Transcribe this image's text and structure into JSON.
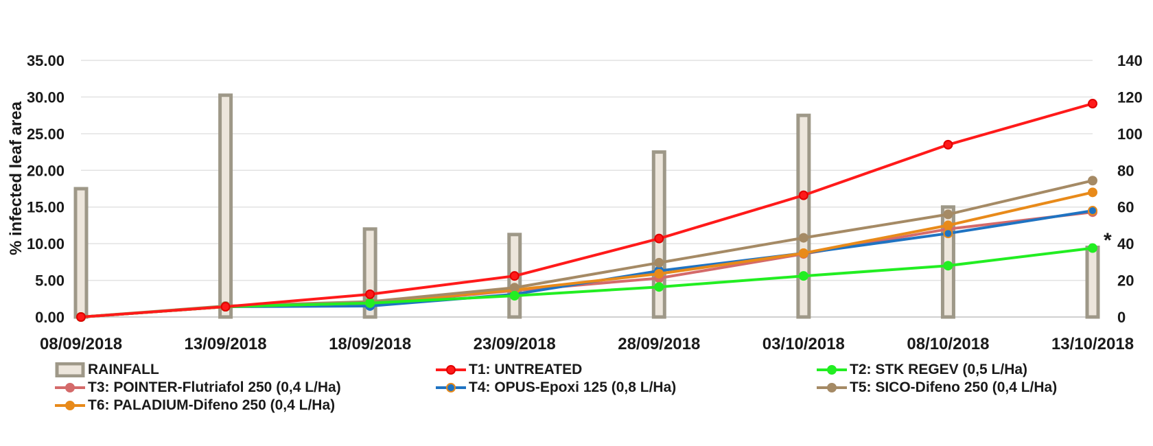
{
  "chart_data": {
    "type": "bar+line",
    "title": "",
    "ylabel": "% infected leaf area",
    "y2label": "",
    "ylim": [
      0,
      35
    ],
    "y2lim": [
      0,
      140
    ],
    "yticks": [
      "0.00",
      "5.00",
      "10.00",
      "15.00",
      "20.00",
      "25.00",
      "30.00",
      "35.00"
    ],
    "y2ticks": [
      "0",
      "20",
      "40",
      "60",
      "80",
      "100",
      "120",
      "140"
    ],
    "xrange": [
      "2018-09-08",
      "2018-10-13"
    ],
    "xticks": [
      "08/09/2018",
      "13/09/2018",
      "18/09/2018",
      "23/09/2018",
      "28/09/2018",
      "03/10/2018",
      "08/10/2018",
      "13/10/2018"
    ],
    "xtick_dates": [
      "2018-09-08",
      "2018-09-13",
      "2018-09-18",
      "2018-09-23",
      "2018-09-28",
      "2018-10-03",
      "2018-10-08",
      "2018-10-13"
    ],
    "grid": true,
    "legend_position": "bottom",
    "annotation": "*",
    "bars": {
      "name": "RAINFALL",
      "axis": "secondary",
      "color": "#ede6dc",
      "edge_color": "#9e9888",
      "x": [
        "2018-09-08",
        "2018-09-13",
        "2018-09-18",
        "2018-09-23",
        "2018-09-28",
        "2018-10-03",
        "2018-10-08",
        "2018-10-13"
      ],
      "values": [
        70,
        121,
        48,
        45,
        90,
        110,
        60,
        38
      ]
    },
    "x": [
      "2018-09-08",
      "2018-09-13",
      "2018-09-18",
      "2018-09-23",
      "2018-09-28",
      "2018-10-03",
      "2018-10-08",
      "2018-10-13"
    ],
    "series": [
      {
        "name": "T1: UNTREATED",
        "color": "#ff1a1a",
        "marker_edge": "#e00000",
        "values": [
          0,
          1.4,
          3.1,
          5.6,
          10.7,
          16.6,
          23.5,
          29.1
        ]
      },
      {
        "name": "T2: STK REGEV (0,5 L/Ha)",
        "color": "#22ee22",
        "marker_edge": "#22ee22",
        "values": [
          0,
          1.4,
          1.9,
          2.9,
          4.1,
          5.6,
          7.0,
          9.4
        ]
      },
      {
        "name": "T3: POINTER-Flutriafol 250 (0,4 L/Ha)",
        "color": "#d46a6a",
        "marker_edge": "#d46a6a",
        "values": [
          0,
          1.4,
          1.8,
          3.6,
          5.3,
          8.6,
          12.0,
          14.3
        ]
      },
      {
        "name": "T4: OPUS-Epoxi 125 (0,8 L/Ha)",
        "color": "#1f73c2",
        "marker_edge": "#1f73c2",
        "values": [
          0,
          1.4,
          1.5,
          3.1,
          6.3,
          8.7,
          11.4,
          14.5
        ]
      },
      {
        "name": "T5: SICO-Difeno 250 (0,4 L/Ha)",
        "color": "#a58a65",
        "marker_edge": "#a58a65",
        "values": [
          0,
          1.5,
          2.1,
          4.0,
          7.4,
          10.8,
          14.0,
          18.6
        ]
      },
      {
        "name": "T6: PALADIUM-Difeno 250 (0,4 L/Ha)",
        "color": "#e88a1a",
        "marker_edge": "#e88a1a",
        "values": [
          0,
          1.4,
          1.9,
          3.7,
          5.9,
          8.7,
          12.5,
          17.0
        ]
      }
    ]
  }
}
